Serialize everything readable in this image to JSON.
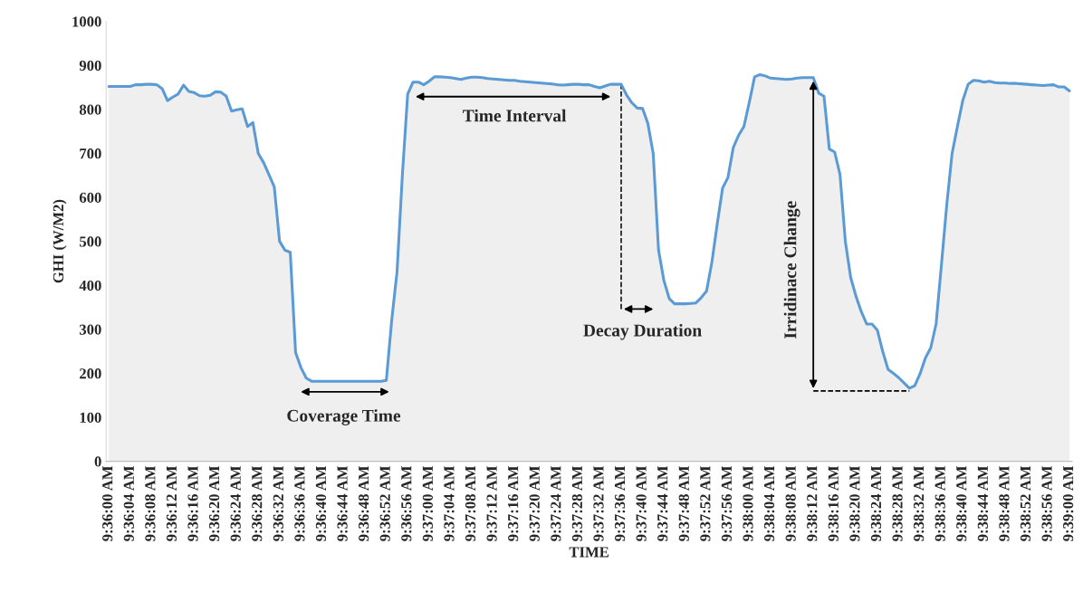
{
  "chart_data": {
    "type": "area",
    "xlabel": "TIME",
    "ylabel": "GHI (W/M2)",
    "ylim": [
      0,
      1000
    ],
    "yticks": [
      0,
      100,
      200,
      300,
      400,
      500,
      600,
      700,
      800,
      900,
      1000
    ],
    "grid": false,
    "legend": false,
    "categories": [
      "9:36:00 AM",
      null,
      null,
      null,
      "9:36:04 AM",
      null,
      null,
      null,
      "9:36:08 AM",
      null,
      null,
      null,
      "9:36:12 AM",
      null,
      null,
      null,
      "9:36:16 AM",
      null,
      null,
      null,
      "9:36:20 AM",
      null,
      null,
      null,
      "9:36:24 AM",
      null,
      null,
      null,
      "9:36:28 AM",
      null,
      null,
      null,
      "9:36:32 AM",
      null,
      null,
      null,
      "9:36:36 AM",
      null,
      null,
      null,
      "9:36:40 AM",
      null,
      null,
      null,
      "9:36:44 AM",
      null,
      null,
      null,
      "9:36:48 AM",
      null,
      null,
      null,
      "9:36:52 AM",
      null,
      null,
      null,
      "9:36:56 AM",
      null,
      null,
      null,
      "9:37:00 AM",
      null,
      null,
      null,
      "9:37:04 AM",
      null,
      null,
      null,
      "9:37:08 AM",
      null,
      null,
      null,
      "9:37:12 AM",
      null,
      null,
      null,
      "9:37:16 AM",
      null,
      null,
      null,
      "9:37:20 AM",
      null,
      null,
      null,
      "9:37:24 AM",
      null,
      null,
      null,
      "9:37:28 AM",
      null,
      null,
      null,
      "9:37:32 AM",
      null,
      null,
      null,
      "9:37:36 AM",
      null,
      null,
      null,
      "9:37:40 AM",
      null,
      null,
      null,
      "9:37:44 AM",
      null,
      null,
      null,
      "9:37:48 AM",
      null,
      null,
      null,
      "9:37:52 AM",
      null,
      null,
      null,
      "9:37:56 AM",
      null,
      null,
      null,
      "9:38:00 AM",
      null,
      null,
      null,
      "9:38:04 AM",
      null,
      null,
      null,
      "9:38:08 AM",
      null,
      null,
      null,
      "9:38:12 AM",
      null,
      null,
      null,
      "9:38:16 AM",
      null,
      null,
      null,
      "9:38:20 AM",
      null,
      null,
      null,
      "9:38:24 AM",
      null,
      null,
      null,
      "9:38:28 AM",
      null,
      null,
      null,
      "9:38:32 AM",
      null,
      null,
      null,
      "9:38:36 AM",
      null,
      null,
      null,
      "9:38:40 AM",
      null,
      null,
      null,
      "9:38:44 AM",
      null,
      null,
      null,
      "9:38:48 AM",
      null,
      null,
      null,
      "9:38:52 AM",
      null,
      null,
      null,
      "9:38:56 AM",
      null,
      null,
      null,
      "9:39:00 AM"
    ],
    "series": [
      {
        "color": "#5b9bd5",
        "values": [
          852,
          852,
          852,
          852,
          852,
          856,
          856,
          857,
          857,
          856,
          847,
          820,
          828,
          835,
          855,
          841,
          838,
          831,
          830,
          832,
          840,
          839,
          830,
          796,
          799,
          801,
          761,
          770,
          700,
          679,
          652,
          624,
          500,
          480,
          475,
          247,
          213,
          189,
          182,
          182,
          182,
          182,
          182,
          182,
          182,
          182,
          182,
          182,
          182,
          182,
          182,
          182,
          184,
          320,
          430,
          650,
          835,
          862,
          862,
          856,
          864,
          874,
          874,
          873,
          872,
          870,
          868,
          871,
          873,
          873,
          872,
          870,
          869,
          868,
          867,
          866,
          866,
          864,
          863,
          862,
          861,
          860,
          859,
          858,
          856,
          855,
          856,
          857,
          857,
          856,
          856,
          852,
          849,
          853,
          857,
          857,
          857,
          833,
          815,
          803,
          802,
          768,
          700,
          480,
          411,
          370,
          358,
          358,
          358,
          359,
          360,
          372,
          387,
          453,
          540,
          621,
          645,
          713,
          741,
          761,
          816,
          874,
          879,
          876,
          871,
          870,
          869,
          868,
          869,
          871,
          872,
          872,
          872,
          837,
          830,
          710,
          703,
          652,
          500,
          418,
          375,
          340,
          312,
          312,
          298,
          250,
          209,
          200,
          190,
          178,
          166,
          172,
          199,
          235,
          258,
          312,
          446,
          583,
          700,
          761,
          820,
          857,
          866,
          865,
          862,
          864,
          861,
          860,
          860,
          859,
          859,
          858,
          857,
          856,
          855,
          854,
          855,
          856,
          851,
          851,
          842
        ]
      }
    ],
    "ref_lines": [
      {
        "axis": "x",
        "value": "9:37:36 AM",
        "color": "#000000",
        "line_style": "dashed"
      },
      {
        "axis": "y",
        "value": 160,
        "color": "#000000",
        "line_style": "dashed"
      }
    ],
    "annotations": [
      "Time Interval",
      "Coverage Time",
      "Decay Duration",
      "Irridinace Change"
    ]
  }
}
